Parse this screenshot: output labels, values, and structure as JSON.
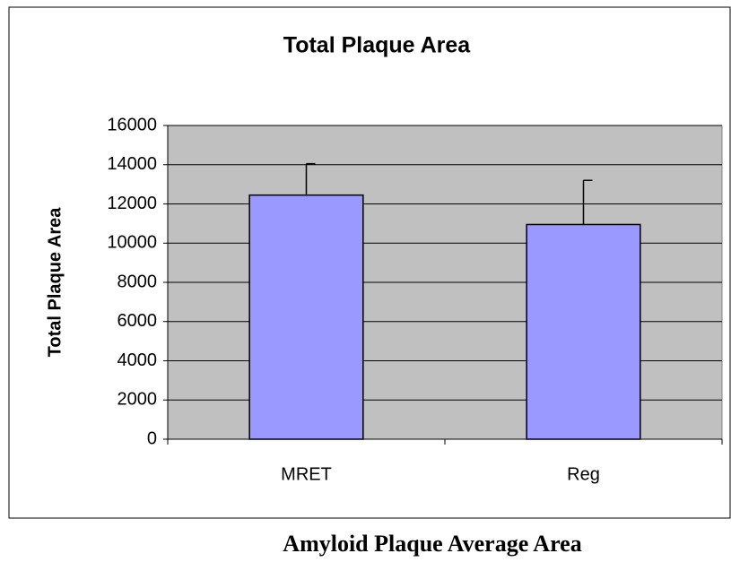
{
  "chart_data": {
    "type": "bar",
    "title": "Total Plaque Area",
    "ylabel": "Total Plaque Area",
    "caption": "Amyloid Plaque Average Area",
    "categories": [
      "MRET",
      "Reg"
    ],
    "values": [
      12450,
      10950
    ],
    "errors": [
      1600,
      2250
    ],
    "color": "#9999ff",
    "ylim": [
      0,
      16000
    ],
    "yticks": [
      0,
      2000,
      4000,
      6000,
      8000,
      10000,
      12000,
      14000,
      16000
    ],
    "grid": true,
    "plot_background": "#c0c0c0"
  }
}
